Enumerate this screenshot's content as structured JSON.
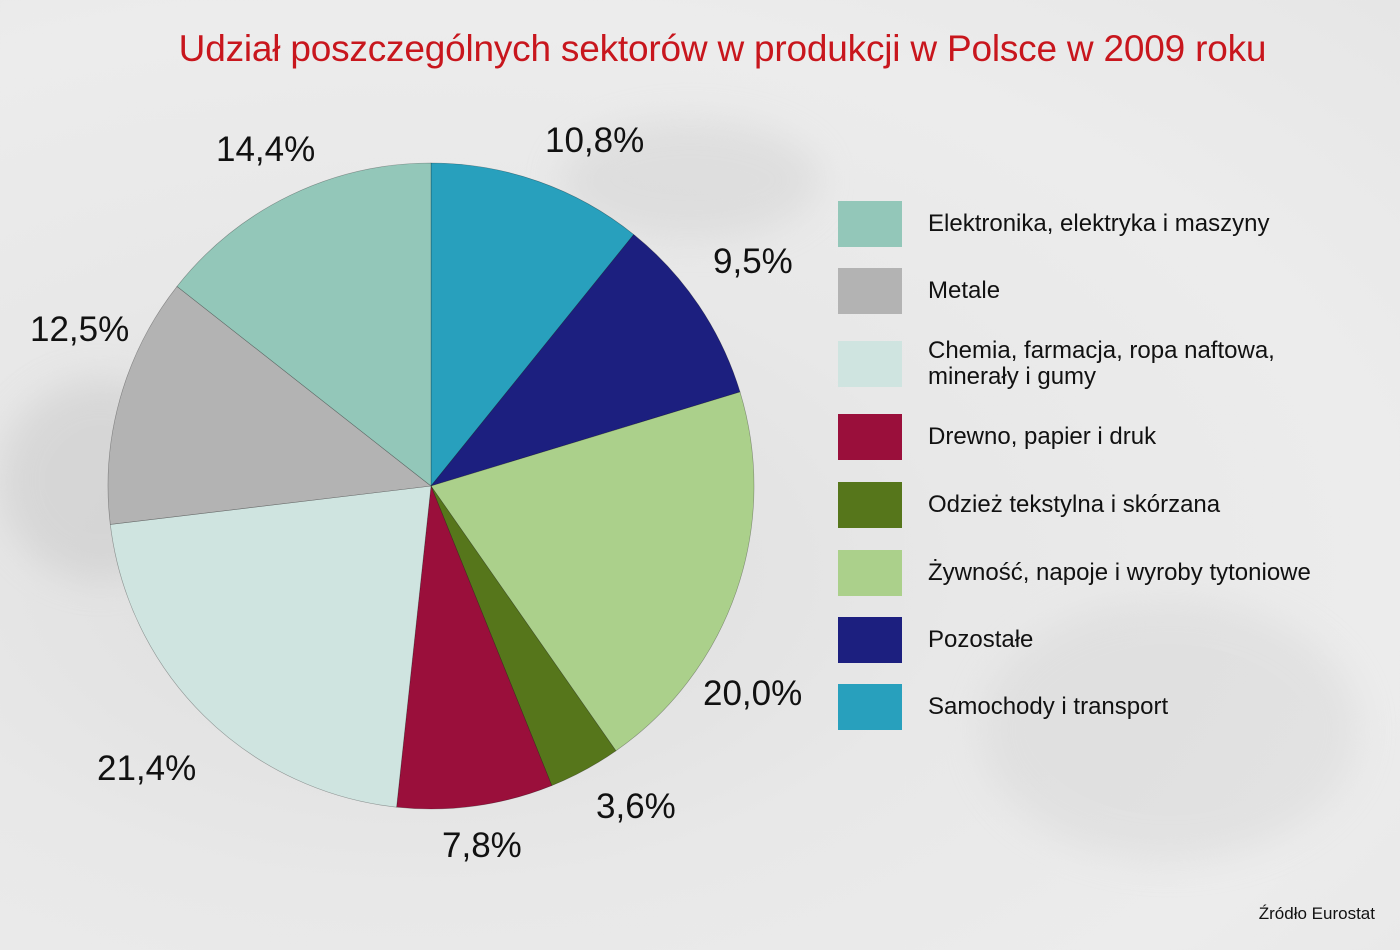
{
  "title": "Udział poszczególnych sektorów w produkcji w Polsce w 2009 roku",
  "source": "Źródło Eurostat",
  "legend": [
    {
      "label": "Elektronika, elektryka i maszyny",
      "color": "#93c7b9"
    },
    {
      "label": "Metale",
      "color": "#b3b3b3"
    },
    {
      "label": "Chemia, farmacja, ropa naftowa, minerały i gumy",
      "color": "#cfe4e0"
    },
    {
      "label": "Drewno, papier i druk",
      "color": "#9a0f3b"
    },
    {
      "label": "Odzież tekstylna i skórzana",
      "color": "#56761b"
    },
    {
      "label": "Żywność, napoje i wyroby tytoniowe",
      "color": "#abd08b"
    },
    {
      "label": "Pozostałe",
      "color": "#1c1f7f"
    },
    {
      "label": "Samochody i transport",
      "color": "#28a0bd"
    }
  ],
  "labels": {
    "samochody": "10,8%",
    "pozostale": "9,5%",
    "zywnosc": "20,0%",
    "odziez": "3,6%",
    "drewno": "7,8%",
    "chemia": "21,4%",
    "metale": "12,5%",
    "elektronika": "14,4%"
  },
  "chart_data": {
    "type": "pie",
    "title": "Udział poszczególnych sektorów w produkcji w Polsce w 2009 roku",
    "start_angle": "12 o'clock, clockwise",
    "categories": [
      "Samochody i transport",
      "Pozostałe",
      "Żywność, napoje i wyroby tytoniowe",
      "Odzież tekstylna i skórzana",
      "Drewno, papier i druk",
      "Chemia, farmacja, ropa naftowa, minerały i gumy",
      "Metale",
      "Elektronika, elektryka i maszyny"
    ],
    "values": [
      10.8,
      9.5,
      20.0,
      3.6,
      7.8,
      21.4,
      12.5,
      14.4
    ],
    "value_labels": [
      "10,8%",
      "9,5%",
      "20,0%",
      "3,6%",
      "7,8%",
      "21,4%",
      "12,5%",
      "14,4%"
    ],
    "colors": [
      "#28a0bd",
      "#1c1f7f",
      "#abd08b",
      "#56761b",
      "#9a0f3b",
      "#cfe4e0",
      "#b3b3b3",
      "#93c7b9"
    ],
    "unit": "%",
    "legend_position": "right",
    "source": "Źródło Eurostat"
  }
}
